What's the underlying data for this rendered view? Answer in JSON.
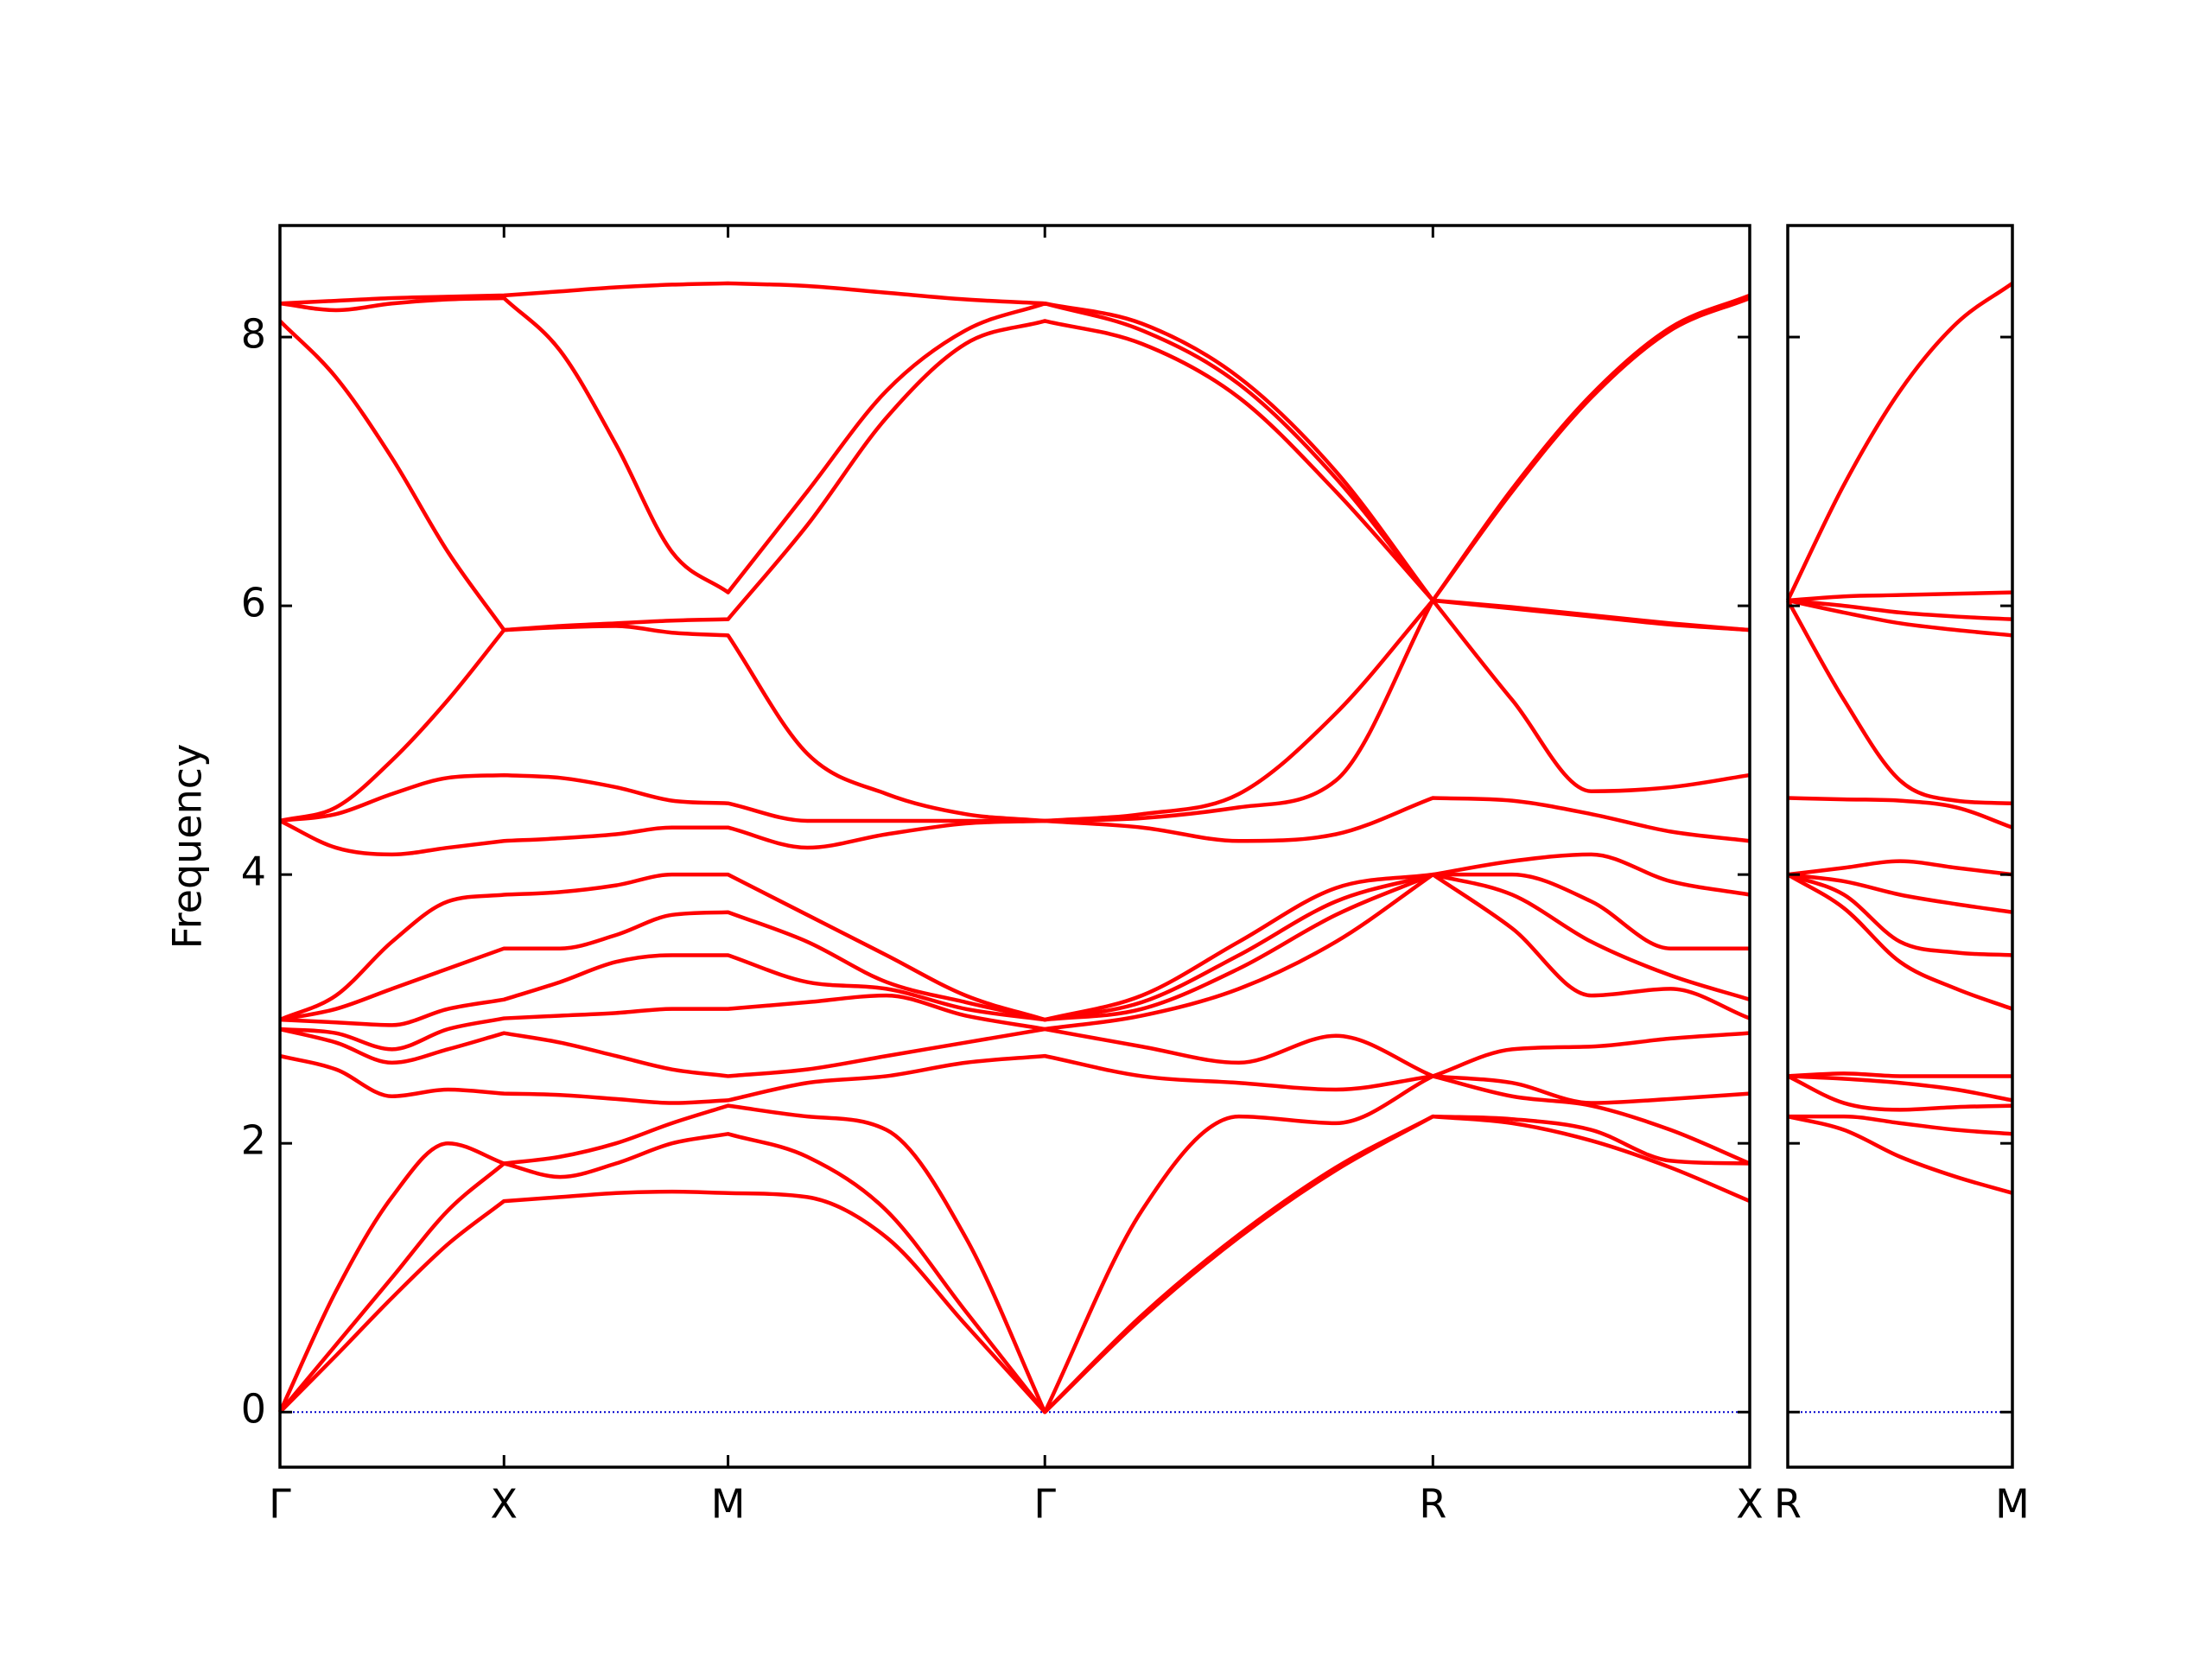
{
  "chart_data": [
    {
      "type": "line",
      "y_label": "Frequency",
      "color": "#ff0000",
      "x": [
        0,
        0.125,
        0.25,
        0.375,
        0.5,
        0.625,
        0.75,
        0.875,
        1.0,
        1.1768,
        1.3536,
        1.5303,
        1.7071,
        1.9236,
        2.1401,
        2.3566,
        2.5731,
        2.7499,
        2.9266,
        3.1034,
        3.2802
      ],
      "xlim": [
        0,
        3.2802
      ],
      "xticks": [
        {
          "value": 0,
          "label": "Γ"
        },
        {
          "value": 0.5,
          "label": "X"
        },
        {
          "value": 1.0,
          "label": "M"
        },
        {
          "value": 1.7071,
          "label": "Γ"
        },
        {
          "value": 2.5731,
          "label": "R"
        },
        {
          "value": 3.2802,
          "label": "X"
        }
      ],
      "ylim": [
        -0.41,
        8.83
      ],
      "yticks": [
        0,
        2,
        4,
        6,
        8
      ],
      "zero_line": {
        "value": 0,
        "color": "#0000cc"
      },
      "series": [
        {
          "values": [
            0,
            0.42,
            0.85,
            1.25,
            1.57,
            1.6,
            1.63,
            1.64,
            1.63,
            1.6,
            1.3,
            0.65,
            0,
            0.7,
            1.3,
            1.8,
            2.2,
            2.15,
            2.02,
            1.82,
            1.57
          ]
        },
        {
          "values": [
            0,
            0.5,
            1.0,
            1.5,
            1.85,
            1.75,
            1.85,
            2.0,
            2.07,
            1.9,
            1.5,
            0.75,
            0,
            0.72,
            1.32,
            1.82,
            2.2,
            2.18,
            2.1,
            1.87,
            1.85
          ]
        },
        {
          "values": [
            0,
            0.9,
            1.6,
            2.0,
            1.85,
            1.9,
            2.0,
            2.15,
            2.28,
            2.2,
            2.1,
            1.3,
            0,
            1.5,
            2.2,
            2.15,
            2.5,
            2.35,
            2.28,
            2.1,
            1.85
          ]
        },
        {
          "values": [
            2.65,
            2.55,
            2.35,
            2.4,
            2.37,
            2.36,
            2.33,
            2.3,
            2.32,
            2.45,
            2.5,
            2.6,
            2.65,
            2.5,
            2.45,
            2.4,
            2.5,
            2.45,
            2.3,
            2.33,
            2.37
          ]
        },
        {
          "values": [
            2.85,
            2.75,
            2.6,
            2.7,
            2.82,
            2.75,
            2.65,
            2.55,
            2.5,
            2.55,
            2.65,
            2.75,
            2.85,
            2.72,
            2.6,
            2.8,
            2.5,
            2.7,
            2.72,
            2.78,
            2.82
          ]
        },
        {
          "values": [
            2.85,
            2.82,
            2.7,
            2.85,
            2.93,
            2.95,
            2.97,
            3.0,
            3.0,
            3.05,
            3.1,
            2.95,
            2.85,
            2.95,
            3.15,
            3.5,
            4.0,
            3.6,
            3.1,
            3.15,
            2.93
          ]
        },
        {
          "values": [
            2.92,
            2.9,
            2.88,
            3.0,
            3.07,
            3.2,
            3.35,
            3.4,
            3.4,
            3.2,
            3.15,
            3.0,
            2.92,
            3.0,
            3.3,
            3.7,
            4.0,
            3.85,
            3.5,
            3.25,
            3.07
          ]
        },
        {
          "values": [
            2.92,
            3.0,
            3.15,
            3.3,
            3.45,
            3.45,
            3.55,
            3.7,
            3.72,
            3.5,
            3.2,
            3.05,
            2.92,
            3.05,
            3.4,
            3.8,
            4.0,
            4.0,
            3.8,
            3.45,
            3.45
          ]
        },
        {
          "values": [
            2.92,
            3.1,
            3.5,
            3.8,
            3.85,
            3.87,
            3.92,
            4.0,
            4.0,
            3.7,
            3.4,
            3.1,
            2.92,
            3.1,
            3.5,
            3.9,
            4.0,
            4.1,
            4.15,
            3.95,
            3.85
          ]
        },
        {
          "values": [
            4.4,
            4.2,
            4.15,
            4.2,
            4.25,
            4.27,
            4.3,
            4.35,
            4.35,
            4.2,
            4.3,
            4.38,
            4.4,
            4.35,
            4.25,
            4.3,
            4.57,
            4.55,
            4.45,
            4.32,
            4.25
          ]
        },
        {
          "values": [
            4.4,
            4.45,
            4.6,
            4.72,
            4.74,
            4.72,
            4.65,
            4.55,
            4.53,
            4.4,
            4.4,
            4.4,
            4.4,
            4.42,
            4.5,
            4.7,
            6.04,
            5.3,
            4.62,
            4.65,
            4.74
          ]
        },
        {
          "values": [
            4.4,
            4.5,
            4.85,
            5.3,
            5.82,
            5.84,
            5.85,
            5.8,
            5.78,
            4.9,
            4.6,
            4.45,
            4.4,
            4.45,
            4.6,
            5.2,
            6.04,
            5.98,
            5.92,
            5.86,
            5.82
          ]
        },
        {
          "values": [
            8.12,
            7.7,
            7.1,
            6.4,
            5.82,
            5.85,
            5.87,
            5.89,
            5.9,
            6.6,
            7.4,
            7.95,
            8.12,
            7.95,
            7.55,
            6.85,
            6.04,
            5.99,
            5.93,
            5.87,
            5.82
          ]
        },
        {
          "values": [
            8.25,
            8.2,
            8.25,
            8.28,
            8.29,
            7.9,
            7.2,
            6.4,
            6.1,
            6.85,
            7.6,
            8.05,
            8.25,
            8.05,
            7.65,
            6.95,
            6.04,
            6.85,
            7.55,
            8.05,
            8.29
          ]
        },
        {
          "values": [
            8.25,
            8.27,
            8.29,
            8.3,
            8.31,
            8.34,
            8.37,
            8.39,
            8.4,
            8.38,
            8.33,
            8.28,
            8.25,
            8.1,
            7.7,
            7.0,
            6.04,
            6.87,
            7.57,
            8.07,
            8.31
          ]
        }
      ]
    },
    {
      "type": "line",
      "color": "#ff0000",
      "x": [
        0,
        0.125,
        0.25,
        0.375,
        0.5
      ],
      "xlim": [
        0,
        0.5
      ],
      "xticks": [
        {
          "value": 0,
          "label": "R"
        },
        {
          "value": 0.5,
          "label": "M"
        }
      ],
      "ylim": [
        -0.41,
        8.83
      ],
      "yticks": [
        0,
        2,
        4,
        6,
        8
      ],
      "ytick_labels": false,
      "zero_line": {
        "value": 0,
        "color": "#0000cc"
      },
      "series": [
        {
          "values": [
            2.2,
            2.1,
            1.9,
            1.75,
            1.63
          ]
        },
        {
          "values": [
            2.2,
            2.2,
            2.15,
            2.1,
            2.07
          ]
        },
        {
          "values": [
            2.5,
            2.3,
            2.25,
            2.27,
            2.28
          ]
        },
        {
          "values": [
            2.5,
            2.48,
            2.45,
            2.4,
            2.32
          ]
        },
        {
          "values": [
            2.5,
            2.52,
            2.5,
            2.5,
            2.5
          ]
        },
        {
          "values": [
            4.0,
            3.75,
            3.35,
            3.15,
            3.0
          ]
        },
        {
          "values": [
            4.0,
            3.85,
            3.5,
            3.42,
            3.4
          ]
        },
        {
          "values": [
            4.0,
            3.95,
            3.85,
            3.78,
            3.72
          ]
        },
        {
          "values": [
            4.0,
            4.05,
            4.1,
            4.05,
            4.0
          ]
        },
        {
          "values": [
            4.57,
            4.56,
            4.55,
            4.5,
            4.35
          ]
        },
        {
          "values": [
            6.04,
            5.3,
            4.7,
            4.55,
            4.53
          ]
        },
        {
          "values": [
            6.04,
            5.95,
            5.87,
            5.82,
            5.78
          ]
        },
        {
          "values": [
            6.04,
            6.0,
            5.95,
            5.92,
            5.9
          ]
        },
        {
          "values": [
            6.04,
            6.07,
            6.08,
            6.09,
            6.1
          ]
        },
        {
          "values": [
            6.04,
            6.9,
            7.6,
            8.1,
            8.4
          ]
        }
      ]
    }
  ]
}
